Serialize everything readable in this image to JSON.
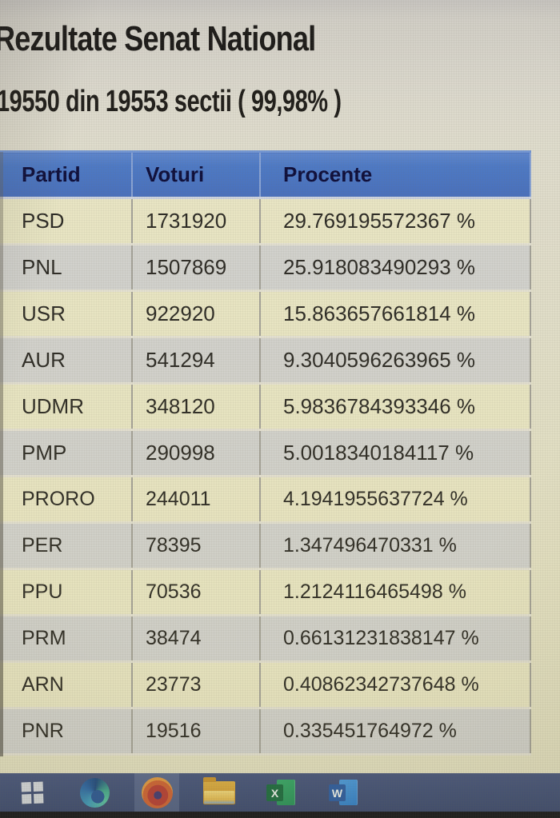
{
  "header": {
    "title": "Rezultate Senat National",
    "subtitle": "19550 din 19553 sectii ( 99,98% )"
  },
  "results_table": {
    "columns": [
      "Partid",
      "Voturi",
      "Procente"
    ],
    "rows": [
      [
        "PSD",
        "1731920",
        "29.769195572367 %"
      ],
      [
        "PNL",
        "1507869",
        "25.918083490293 %"
      ],
      [
        "USR",
        "922920",
        "15.863657661814 %"
      ],
      [
        "AUR",
        "541294",
        "9.3040596263965 %"
      ],
      [
        "UDMR",
        "348120",
        "5.9836784393346 %"
      ],
      [
        "PMP",
        "290998",
        "5.0018340184117 %"
      ],
      [
        "PRORO",
        "244011",
        "4.1941955637724 %"
      ],
      [
        "PER",
        "78395",
        "1.347496470331 %"
      ],
      [
        "PPU",
        "70536",
        "1.2124116465498 %"
      ],
      [
        "PRM",
        "38474",
        "0.66131231838147 %"
      ],
      [
        "ARN",
        "23773",
        "0.40862342737648 %"
      ],
      [
        "PNR",
        "19516",
        "0.335451764972 %"
      ]
    ]
  },
  "taskbar": {
    "icons": [
      {
        "name": "windows-start"
      },
      {
        "name": "edge-browser"
      },
      {
        "name": "firefox-browser",
        "active": true
      },
      {
        "name": "file-explorer"
      },
      {
        "name": "excel",
        "glyph": "X"
      },
      {
        "name": "word",
        "glyph": "W"
      }
    ]
  },
  "colors": {
    "table_header_bg": "#4d79c5",
    "table_header_text": "#0d0d3a",
    "row_gray": "#d2d2cf",
    "row_cream": "#e9e6c5",
    "page_background": "#e0ddcd",
    "taskbar_bg": "#41507a",
    "bottom_bezel": "#15151b"
  }
}
